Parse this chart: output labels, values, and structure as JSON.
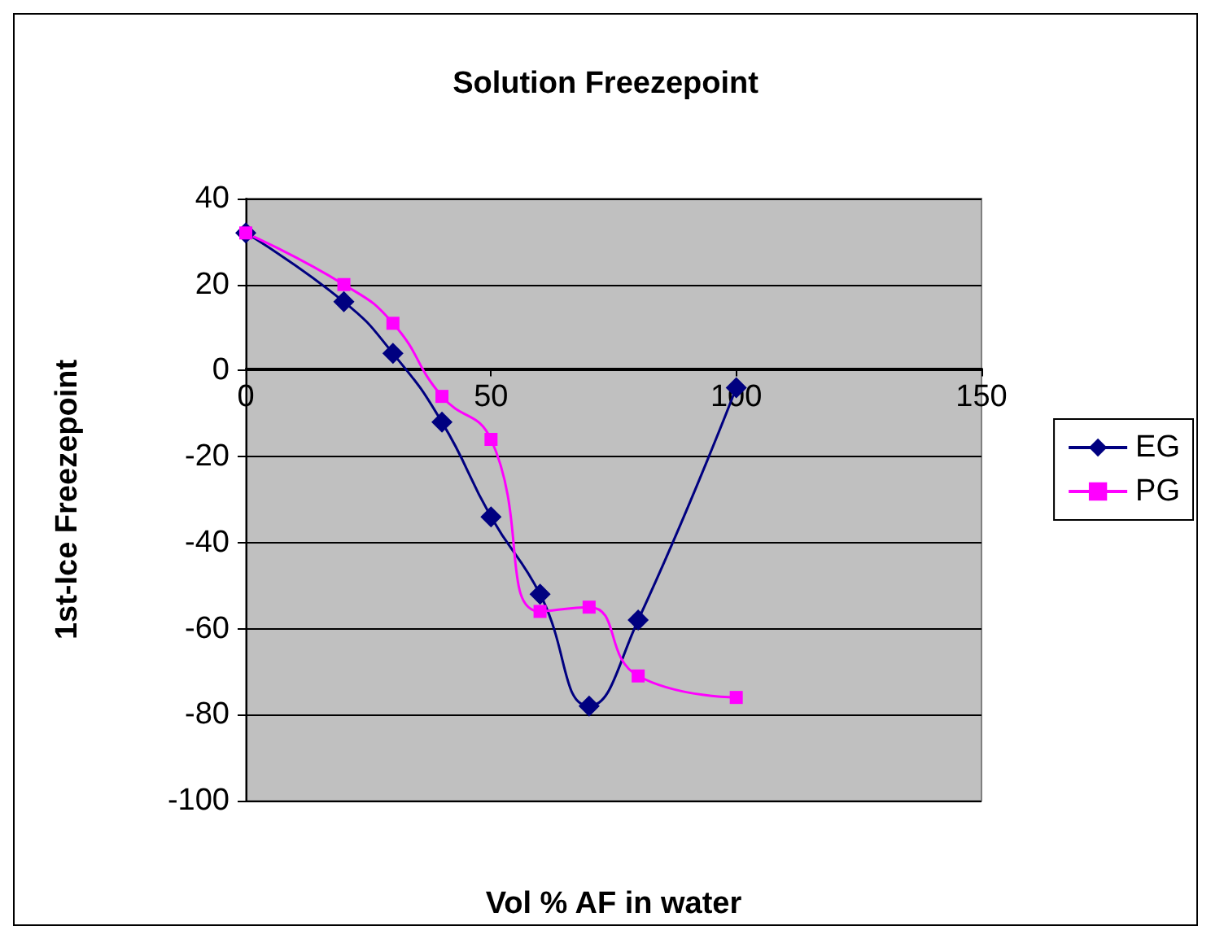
{
  "chart_data": {
    "type": "line",
    "title": "Solution Freezepoint",
    "xlabel": "Vol % AF in water",
    "ylabel": "1st-Ice Freezepoint",
    "x": [
      0,
      20,
      30,
      40,
      50,
      60,
      70,
      80,
      100
    ],
    "series": [
      {
        "name": "EG",
        "color": "#000080",
        "marker": "diamond",
        "values": [
          32,
          16,
          4,
          -12,
          -34,
          -52,
          -78,
          -58,
          -4
        ]
      },
      {
        "name": "PG",
        "color": "#ff00ff",
        "marker": "square",
        "values": [
          32,
          20,
          11,
          -6,
          -16,
          -56,
          -55,
          -71,
          -76
        ]
      }
    ],
    "xlim": [
      0,
      150
    ],
    "xticks": [
      0,
      50,
      100,
      150
    ],
    "ylim": [
      -100,
      40
    ],
    "yticks": [
      -100,
      -80,
      -60,
      -40,
      -20,
      0,
      20,
      40
    ],
    "grid": "y",
    "legend": "right"
  }
}
